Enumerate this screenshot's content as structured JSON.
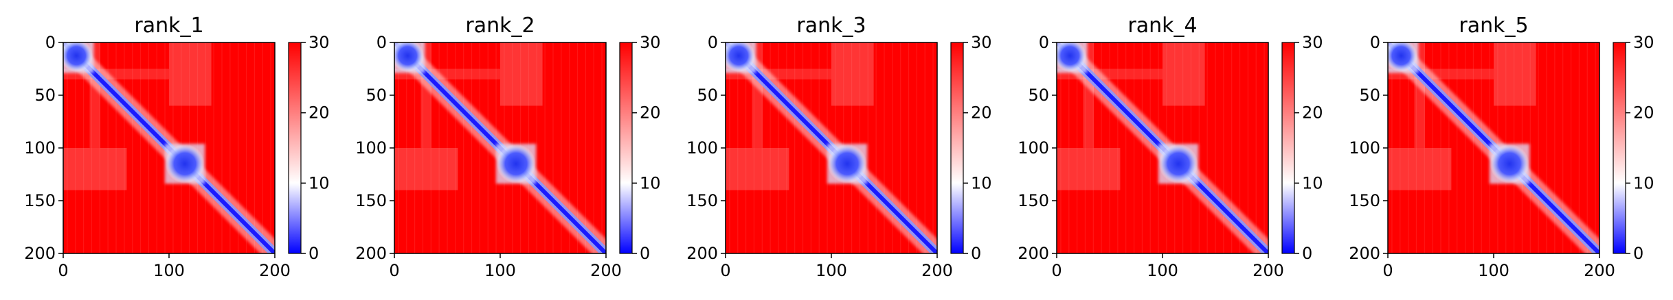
{
  "chart_data": [
    {
      "type": "heatmap",
      "title": "rank_1",
      "xlim": [
        0,
        200
      ],
      "ylim": [
        200,
        0
      ],
      "xticks": [
        "0",
        "100",
        "200"
      ],
      "yticks": [
        "0",
        "50",
        "100",
        "150",
        "200"
      ],
      "colorbar": {
        "min": 0,
        "max": 30,
        "ticks": [
          "0",
          "10",
          "20",
          "30"
        ],
        "colors": [
          "#0000ff",
          "#ffffff",
          "#ff0000"
        ]
      },
      "features": {
        "diagonal_band": "blue, from (0,0) to (200,200)",
        "low_distance_blocks": [
          {
            "x": [
              0,
              25
            ],
            "y": [
              0,
              25
            ]
          },
          {
            "x": [
              100,
              130
            ],
            "y": [
              100,
              130
            ]
          }
        ],
        "background": "red (>=30)"
      }
    },
    {
      "type": "heatmap",
      "title": "rank_2",
      "xlim": [
        0,
        200
      ],
      "ylim": [
        200,
        0
      ],
      "xticks": [
        "0",
        "100",
        "200"
      ],
      "yticks": [
        "0",
        "50",
        "100",
        "150",
        "200"
      ],
      "colorbar": {
        "min": 0,
        "max": 30,
        "ticks": [
          "0",
          "10",
          "20",
          "30"
        ],
        "colors": [
          "#0000ff",
          "#ffffff",
          "#ff0000"
        ]
      },
      "features": {
        "diagonal_band": "blue, from (0,0) to (200,200)",
        "low_distance_blocks": [
          {
            "x": [
              0,
              25
            ],
            "y": [
              0,
              25
            ]
          },
          {
            "x": [
              100,
              130
            ],
            "y": [
              100,
              130
            ]
          }
        ],
        "background": "red (>=30)"
      }
    },
    {
      "type": "heatmap",
      "title": "rank_3",
      "xlim": [
        0,
        200
      ],
      "ylim": [
        200,
        0
      ],
      "xticks": [
        "0",
        "100",
        "200"
      ],
      "yticks": [
        "0",
        "50",
        "100",
        "150",
        "200"
      ],
      "colorbar": {
        "min": 0,
        "max": 30,
        "ticks": [
          "0",
          "10",
          "20",
          "30"
        ],
        "colors": [
          "#0000ff",
          "#ffffff",
          "#ff0000"
        ]
      },
      "features": {
        "diagonal_band": "blue, from (0,0) to (200,200)",
        "low_distance_blocks": [
          {
            "x": [
              0,
              25
            ],
            "y": [
              0,
              25
            ]
          },
          {
            "x": [
              100,
              130
            ],
            "y": [
              100,
              130
            ]
          }
        ],
        "background": "red (>=30)"
      }
    },
    {
      "type": "heatmap",
      "title": "rank_4",
      "xlim": [
        0,
        200
      ],
      "ylim": [
        200,
        0
      ],
      "xticks": [
        "0",
        "100",
        "200"
      ],
      "yticks": [
        "0",
        "50",
        "100",
        "150",
        "200"
      ],
      "colorbar": {
        "min": 0,
        "max": 30,
        "ticks": [
          "0",
          "10",
          "20",
          "30"
        ],
        "colors": [
          "#0000ff",
          "#ffffff",
          "#ff0000"
        ]
      },
      "features": {
        "diagonal_band": "blue, from (0,0) to (200,200)",
        "low_distance_blocks": [
          {
            "x": [
              0,
              25
            ],
            "y": [
              0,
              25
            ]
          },
          {
            "x": [
              100,
              130
            ],
            "y": [
              100,
              130
            ]
          }
        ],
        "background": "red (>=30)"
      }
    },
    {
      "type": "heatmap",
      "title": "rank_5",
      "xlim": [
        0,
        200
      ],
      "ylim": [
        200,
        0
      ],
      "xticks": [
        "0",
        "100",
        "200"
      ],
      "yticks": [
        "0",
        "50",
        "100",
        "150",
        "200"
      ],
      "colorbar": {
        "min": 0,
        "max": 30,
        "ticks": [
          "0",
          "10",
          "20",
          "30"
        ],
        "colors": [
          "#0000ff",
          "#ffffff",
          "#ff0000"
        ]
      },
      "features": {
        "diagonal_band": "blue, from (0,0) to (200,200)",
        "low_distance_blocks": [
          {
            "x": [
              0,
              25
            ],
            "y": [
              0,
              25
            ]
          },
          {
            "x": [
              100,
              130
            ],
            "y": [
              100,
              130
            ]
          }
        ],
        "background": "red (>=30)"
      }
    }
  ]
}
